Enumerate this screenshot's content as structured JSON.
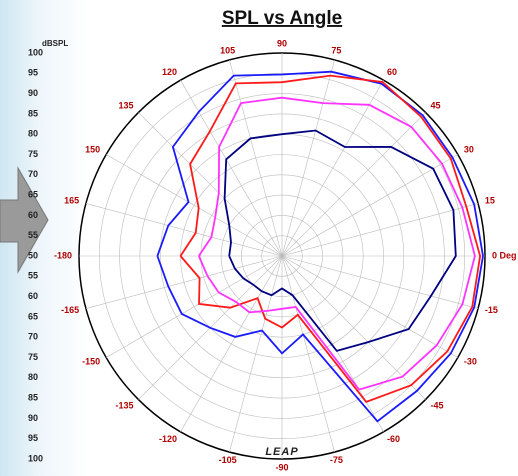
{
  "chart_data": {
    "type": "polar",
    "title": "SPL vs Angle",
    "r_axis_label": "dBSPL",
    "watermark": "LEAP",
    "rlim": [
      50,
      100
    ],
    "rticks": [
      50,
      55,
      60,
      65,
      70,
      75,
      80,
      85,
      90,
      95,
      100
    ],
    "angle_ticks": [
      {
        "value": 0,
        "label": "0 Deg"
      },
      15,
      30,
      45,
      60,
      75,
      90,
      105,
      120,
      135,
      150,
      165,
      -180,
      -165,
      -150,
      -135,
      -120,
      -105,
      -90,
      -75,
      -60,
      -45,
      -30,
      -15
    ],
    "grid": true,
    "x": [
      -180,
      -165,
      -150,
      -135,
      -120,
      -105,
      -90,
      -75,
      -60,
      -45,
      -30,
      -15,
      0,
      15,
      30,
      45,
      60,
      75,
      90,
      105,
      120,
      135,
      150,
      165,
      180
    ],
    "series": [
      {
        "color": "#1a1aff",
        "values": [
          80.7,
          79,
          78.5,
          75,
          73,
          69,
          74,
          70,
          97,
          97,
          98,
          99,
          99.5,
          99,
          98.5,
          99,
          99,
          97,
          94.7,
          96,
          91,
          88,
          76.6,
          79,
          80.7
        ]
      },
      {
        "color": "#ff1a1a",
        "values": [
          75,
          71,
          73.6,
          68,
          62,
          66,
          67.6,
          65,
          91.5,
          95,
          97,
          98.5,
          98.8,
          97,
          98,
          98.5,
          99.5,
          96,
          92.8,
          94,
          85.5,
          82,
          73.7,
          72,
          75
        ]
      },
      {
        "color": "#ff33ff",
        "values": [
          70.5,
          69,
          68,
          66,
          66,
          64,
          63,
          63,
          88,
          92,
          94,
          96,
          97.5,
          96,
          95.5,
          95,
          93,
          89,
          89,
          89,
          81,
          72,
          69,
          68,
          70.5
        ]
      },
      {
        "color": "#000080",
        "values": [
          63,
          62,
          61,
          60,
          60,
          60,
          58,
          60,
          77,
          80,
          86,
          88,
          92.8,
          93.7,
          93,
          88,
          81,
          82,
          80,
          80,
          77.5,
          70,
          65,
          63,
          63
        ]
      }
    ]
  }
}
